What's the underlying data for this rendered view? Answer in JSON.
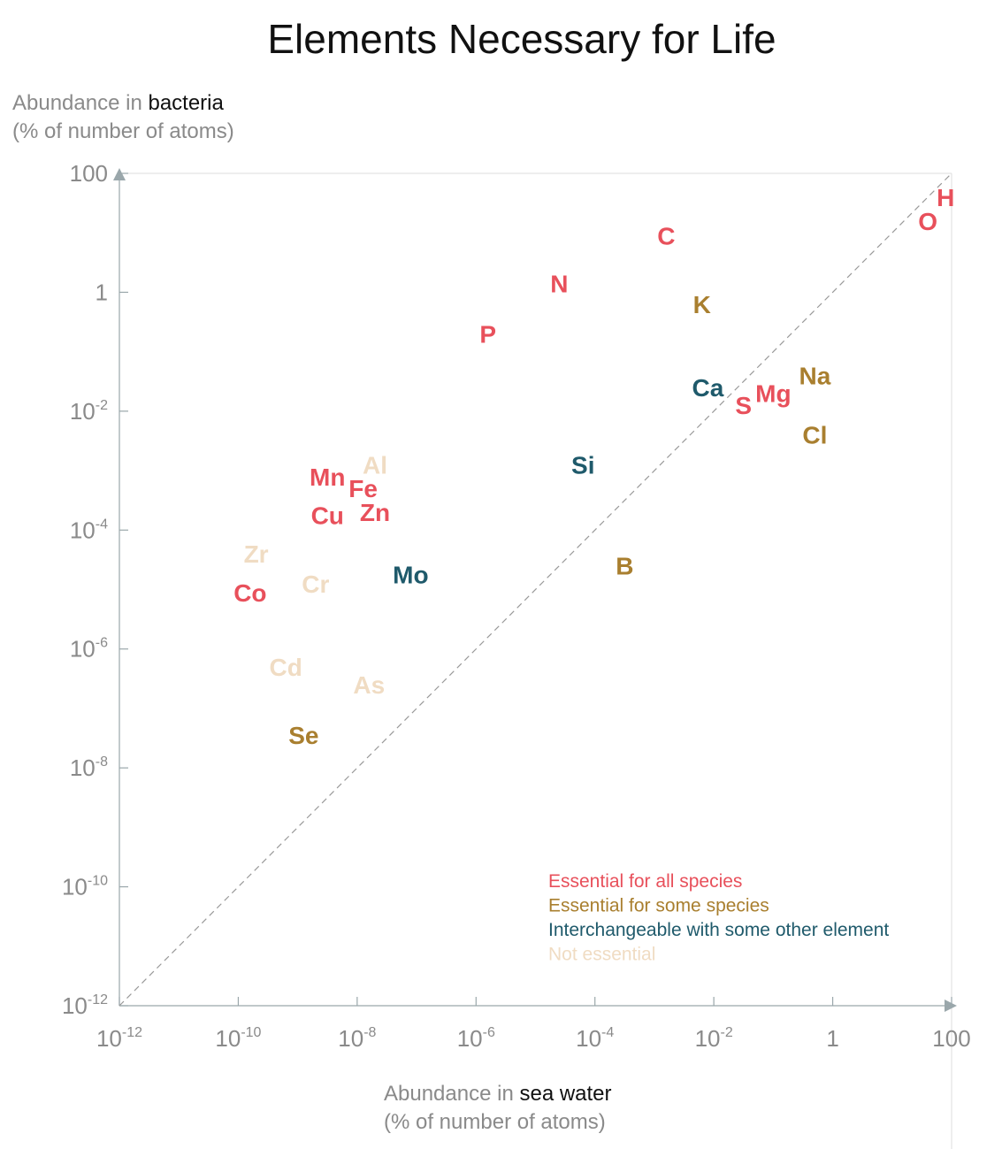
{
  "chart_data": {
    "type": "scatter",
    "title": "Elements Necessary for Life",
    "y_axis": {
      "label_prefix": "Abundance in ",
      "label_emphasis": "bacteria",
      "label_unit": "(% of number of atoms)",
      "scale": "log10",
      "range_log10": [
        -12,
        2
      ]
    },
    "x_axis": {
      "label_prefix": "Abundance in ",
      "label_emphasis": "sea water",
      "label_unit": "(% of number of atoms)",
      "scale": "log10",
      "range_log10": [
        -12,
        2
      ]
    },
    "y_ticks": [
      {
        "log": 2,
        "base": "100",
        "exp": ""
      },
      {
        "log": 0,
        "base": "1",
        "exp": ""
      },
      {
        "log": -2,
        "base": "10",
        "exp": "-2"
      },
      {
        "log": -4,
        "base": "10",
        "exp": "-4"
      },
      {
        "log": -6,
        "base": "10",
        "exp": "-6"
      },
      {
        "log": -8,
        "base": "10",
        "exp": "-8"
      },
      {
        "log": -10,
        "base": "10",
        "exp": "-10"
      },
      {
        "log": -12,
        "base": "10",
        "exp": "-12"
      }
    ],
    "x_ticks": [
      {
        "log": -12,
        "base": "10",
        "exp": "-12"
      },
      {
        "log": -10,
        "base": "10",
        "exp": "-10"
      },
      {
        "log": -8,
        "base": "10",
        "exp": "-8"
      },
      {
        "log": -6,
        "base": "10",
        "exp": "-6"
      },
      {
        "log": -4,
        "base": "10",
        "exp": "-4"
      },
      {
        "log": -2,
        "base": "10",
        "exp": "-2"
      },
      {
        "log": 0,
        "base": "1",
        "exp": ""
      },
      {
        "log": 2,
        "base": "100",
        "exp": ""
      }
    ],
    "reference_line": "y = x (dashed)",
    "categories": [
      {
        "key": "all",
        "label": "Essential for all species",
        "color": "#e8505b"
      },
      {
        "key": "some",
        "label": "Essential for some species",
        "color": "#a97f2f"
      },
      {
        "key": "inter",
        "label": "Interchangeable with some other element",
        "color": "#1f5a6b"
      },
      {
        "key": "none",
        "label": "Not essential",
        "color": "#f0dcc3"
      }
    ],
    "points": [
      {
        "symbol": "H",
        "category": "all",
        "x_log": 1.9,
        "y_log": 1.6
      },
      {
        "symbol": "O",
        "category": "all",
        "x_log": 1.6,
        "y_log": 1.2
      },
      {
        "symbol": "C",
        "category": "all",
        "x_log": -2.8,
        "y_log": 0.95
      },
      {
        "symbol": "N",
        "category": "all",
        "x_log": -4.6,
        "y_log": 0.15
      },
      {
        "symbol": "P",
        "category": "all",
        "x_log": -5.8,
        "y_log": -0.7
      },
      {
        "symbol": "K",
        "category": "some",
        "x_log": -2.2,
        "y_log": -0.2
      },
      {
        "symbol": "Ca",
        "category": "inter",
        "x_log": -2.1,
        "y_log": -1.6
      },
      {
        "symbol": "S",
        "category": "all",
        "x_log": -1.5,
        "y_log": -1.9
      },
      {
        "symbol": "Mg",
        "category": "all",
        "x_log": -1.0,
        "y_log": -1.7
      },
      {
        "symbol": "Na",
        "category": "some",
        "x_log": -0.3,
        "y_log": -1.4
      },
      {
        "symbol": "Cl",
        "category": "some",
        "x_log": -0.3,
        "y_log": -2.4
      },
      {
        "symbol": "Si",
        "category": "inter",
        "x_log": -4.2,
        "y_log": -2.9
      },
      {
        "symbol": "Mn",
        "category": "all",
        "x_log": -8.5,
        "y_log": -3.1
      },
      {
        "symbol": "Al",
        "category": "none",
        "x_log": -7.7,
        "y_log": -2.9
      },
      {
        "symbol": "Fe",
        "category": "all",
        "x_log": -7.9,
        "y_log": -3.3
      },
      {
        "symbol": "Cu",
        "category": "all",
        "x_log": -8.5,
        "y_log": -3.75
      },
      {
        "symbol": "Zn",
        "category": "all",
        "x_log": -7.7,
        "y_log": -3.7
      },
      {
        "symbol": "Zr",
        "category": "none",
        "x_log": -9.7,
        "y_log": -4.4
      },
      {
        "symbol": "Co",
        "category": "all",
        "x_log": -9.8,
        "y_log": -5.05
      },
      {
        "symbol": "Cr",
        "category": "none",
        "x_log": -8.7,
        "y_log": -4.9
      },
      {
        "symbol": "Mo",
        "category": "inter",
        "x_log": -7.1,
        "y_log": -4.75
      },
      {
        "symbol": "B",
        "category": "some",
        "x_log": -3.5,
        "y_log": -4.6
      },
      {
        "symbol": "Cd",
        "category": "none",
        "x_log": -9.2,
        "y_log": -6.3
      },
      {
        "symbol": "As",
        "category": "none",
        "x_log": -7.8,
        "y_log": -6.6
      },
      {
        "symbol": "Se",
        "category": "some",
        "x_log": -8.9,
        "y_log": -7.45
      }
    ]
  }
}
